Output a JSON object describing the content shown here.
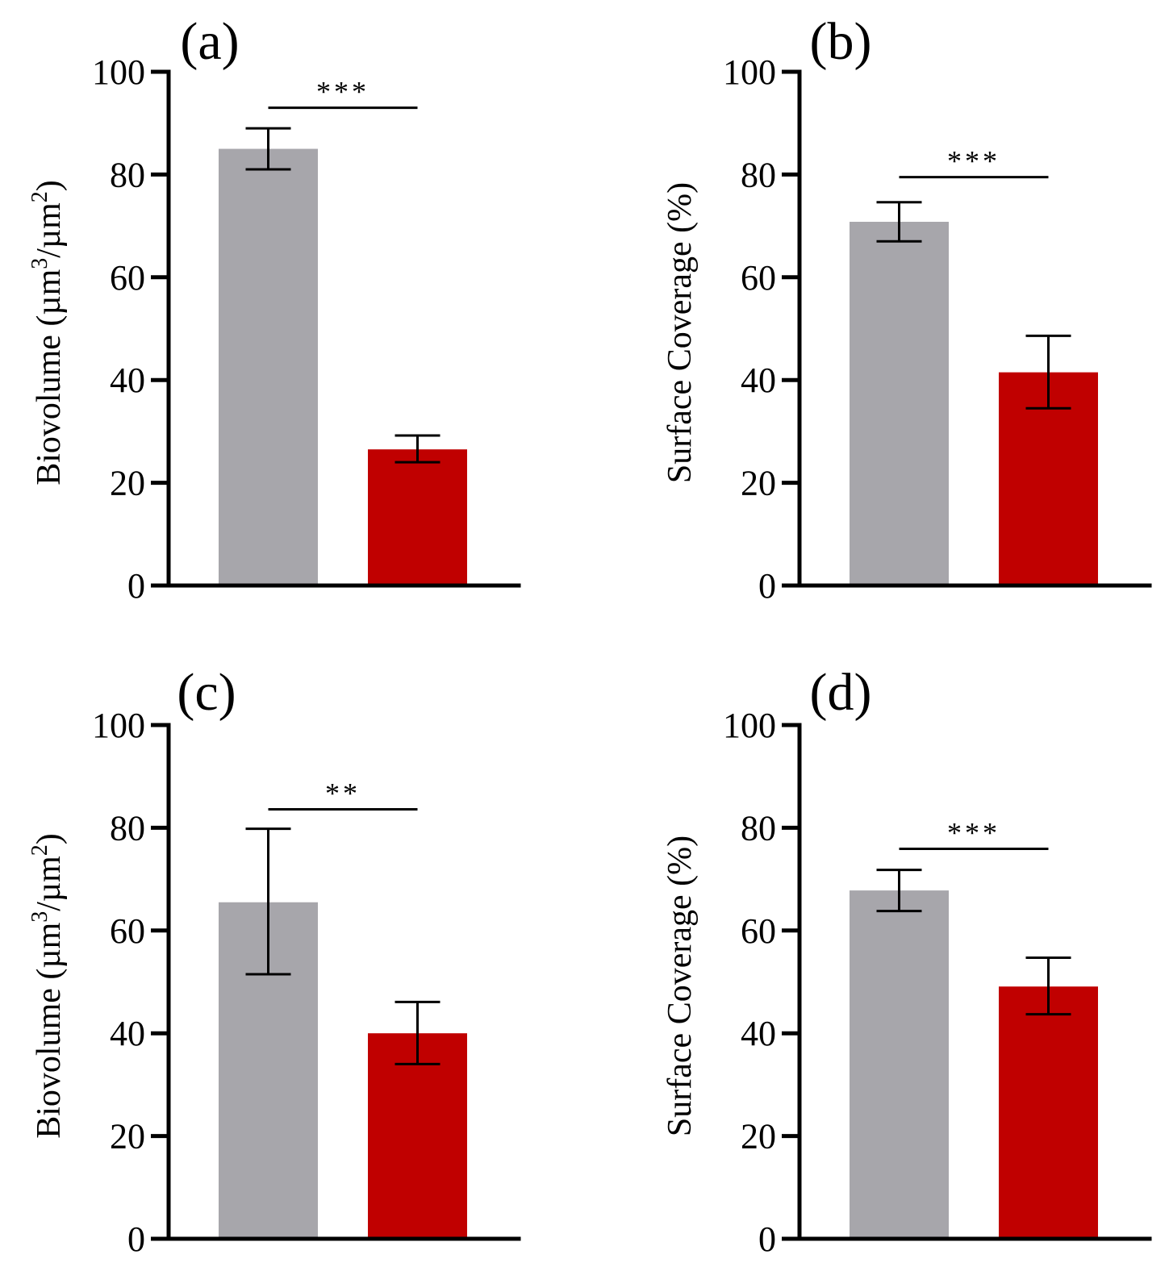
{
  "colors": {
    "control": "#a7a6ab",
    "treated": "#c00000",
    "axis": "#000000"
  },
  "chart_data": [
    {
      "type": "bar",
      "panel": "(a)",
      "ylabel": "Biovolume (µm³/µm²)",
      "ylabel_parts": {
        "main": "Biovolume (µm",
        "sup1": "3",
        "mid": "/µm",
        "sup2": "2",
        "end": ")"
      },
      "ylim": [
        0,
        100
      ],
      "yticks": [
        "0",
        "20",
        "40",
        "60",
        "80",
        "100"
      ],
      "bars": [
        {
          "value": 85,
          "err_low": 81,
          "err_high": 89,
          "color": "#a7a6ab"
        },
        {
          "value": 26.5,
          "err_low": 24,
          "err_high": 29.2,
          "color": "#c00000"
        }
      ],
      "significance": {
        "label": "***",
        "y": 93
      }
    },
    {
      "type": "bar",
      "panel": "(b)",
      "ylabel": "Surface Coverage (%)",
      "ylim": [
        0,
        100
      ],
      "yticks": [
        "0",
        "20",
        "40",
        "60",
        "80",
        "100"
      ],
      "bars": [
        {
          "value": 70.8,
          "err_low": 67,
          "err_high": 74.6,
          "color": "#a7a6ab"
        },
        {
          "value": 41.5,
          "err_low": 34.5,
          "err_high": 48.6,
          "color": "#c00000"
        }
      ],
      "significance": {
        "label": "***",
        "y": 79.5
      }
    },
    {
      "type": "bar",
      "panel": "(c)",
      "ylabel": "Biovolume (µm³/µm²)",
      "ylabel_parts": {
        "main": "Biovolume (µm",
        "sup1": "3",
        "mid": "/µm",
        "sup2": "2",
        "end": ")"
      },
      "ylim": [
        0,
        100
      ],
      "yticks": [
        "0",
        "20",
        "40",
        "60",
        "80",
        "100"
      ],
      "bars": [
        {
          "value": 65.5,
          "err_low": 51.5,
          "err_high": 79.8,
          "color": "#a7a6ab"
        },
        {
          "value": 40,
          "err_low": 34,
          "err_high": 46.1,
          "color": "#c00000"
        }
      ],
      "significance": {
        "label": "**",
        "y": 83.6
      }
    },
    {
      "type": "bar",
      "panel": "(d)",
      "ylabel": "Surface Coverage (%)",
      "ylim": [
        0,
        100
      ],
      "yticks": [
        "0",
        "20",
        "40",
        "60",
        "80",
        "100"
      ],
      "bars": [
        {
          "value": 67.8,
          "err_low": 63.8,
          "err_high": 71.8,
          "color": "#a7a6ab"
        },
        {
          "value": 49.1,
          "err_low": 43.7,
          "err_high": 54.7,
          "color": "#c00000"
        }
      ],
      "significance": {
        "label": "***",
        "y": 75.9
      }
    }
  ]
}
